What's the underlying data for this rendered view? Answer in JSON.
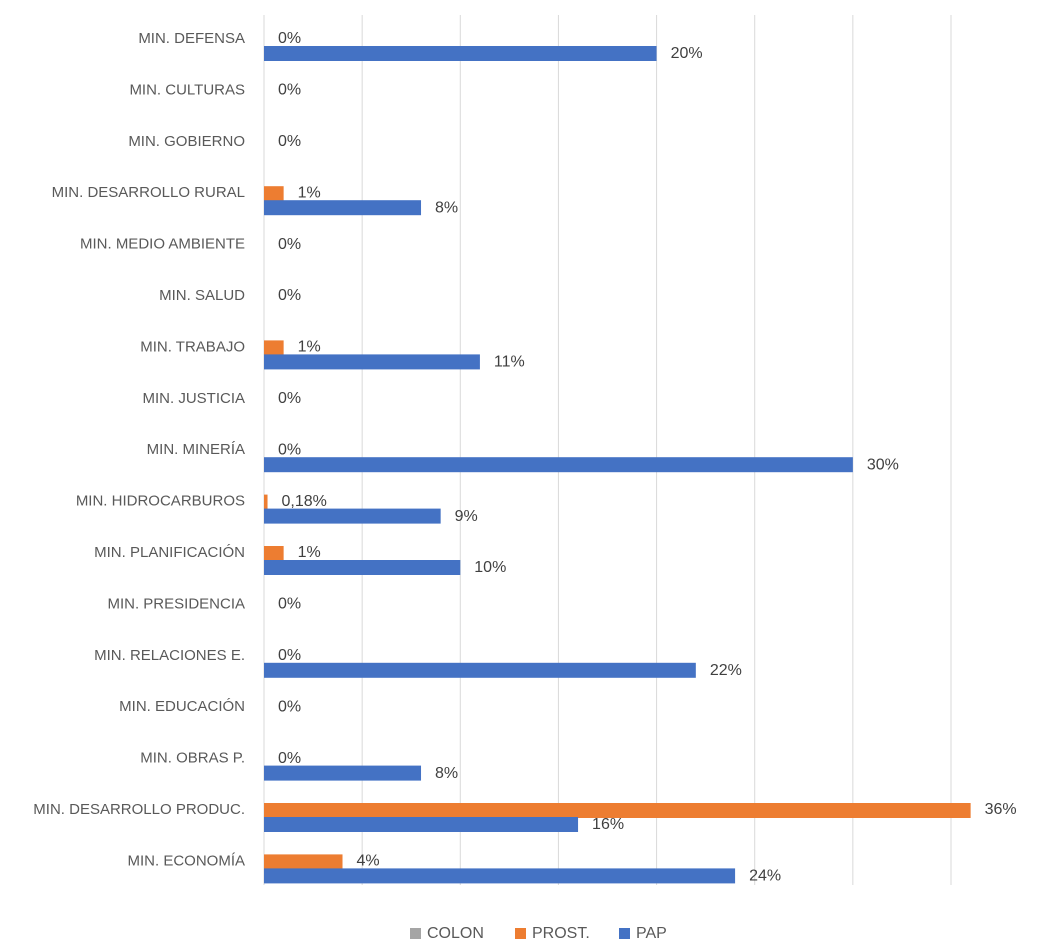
{
  "chart_data": {
    "type": "barh",
    "categories": [
      "MIN. DEFENSA",
      "MIN. CULTURAS",
      "MIN. GOBIERNO",
      "MIN. DESARROLLO RURAL",
      "MIN. MEDIO AMBIENTE",
      "MIN. SALUD",
      "MIN. TRABAJO",
      "MIN. JUSTICIA",
      "MIN. MINERÍA",
      "MIN. HIDROCARBUROS",
      "MIN. PLANIFICACIÓN",
      "MIN. PRESIDENCIA",
      "MIN. RELACIONES E.",
      "MIN. EDUCACIÓN",
      "MIN. OBRAS P.",
      "MIN. DESARROLLO PRODUC.",
      "MIN. ECONOMÍA"
    ],
    "series": [
      {
        "name": "COLON",
        "color": "#a5a5a5",
        "values": [
          null,
          null,
          null,
          null,
          null,
          null,
          null,
          null,
          null,
          null,
          null,
          null,
          null,
          null,
          null,
          null,
          null
        ]
      },
      {
        "name": "PROST.",
        "color": "#ed7d31",
        "values": [
          0,
          0,
          0,
          1,
          0,
          0,
          1,
          0,
          0,
          0.18,
          1,
          0,
          0,
          0,
          0,
          36,
          4
        ],
        "value_labels": [
          "0%",
          "0%",
          "0%",
          "1%",
          "0%",
          "0%",
          "1%",
          "0%",
          "0%",
          "0,18%",
          "1%",
          "0%",
          "0%",
          "0%",
          "0%",
          "36%",
          "4%"
        ]
      },
      {
        "name": "PAP",
        "color": "#4472c4",
        "values": [
          20,
          null,
          null,
          8,
          null,
          null,
          11,
          null,
          30,
          9,
          10,
          null,
          22,
          null,
          8,
          16,
          24
        ],
        "value_labels": [
          "20%",
          null,
          null,
          "8%",
          null,
          null,
          "11%",
          null,
          "30%",
          "9%",
          "10%",
          null,
          "22%",
          null,
          "8%",
          "16%",
          "24%"
        ]
      }
    ],
    "xlim": [
      0,
      35
    ],
    "xticks": [
      0,
      5,
      10,
      15,
      20,
      25,
      30,
      35
    ],
    "grid": true,
    "legend": "bottom"
  }
}
